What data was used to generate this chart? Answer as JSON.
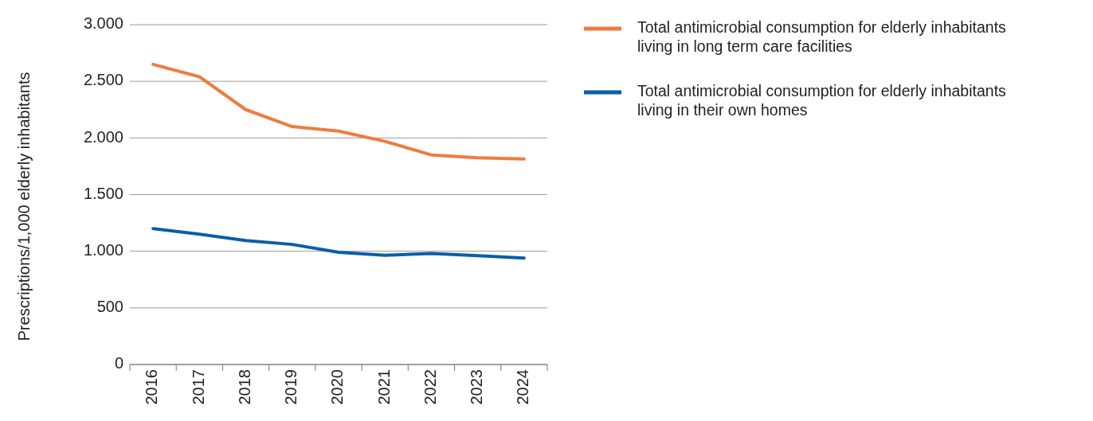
{
  "chart_data": {
    "type": "line",
    "ylabel": "Prescriptions/1,000 elderly inhabitants",
    "categories": [
      "2016",
      "2017",
      "2018",
      "2019",
      "2020",
      "2021",
      "2022",
      "2023",
      "2024"
    ],
    "series": [
      {
        "name": "Total antimicrobial consumption for elderly inhabitants living in long term care facilities",
        "color": "#f07b3f",
        "values": [
          2650,
          2540,
          2250,
          2100,
          2060,
          1970,
          1850,
          1825,
          1815
        ]
      },
      {
        "name": "Total antimicrobial consumption for elderly inhabitants living in their own homes",
        "color": "#0a5ea8",
        "values": [
          1200,
          1150,
          1095,
          1060,
          990,
          965,
          980,
          960,
          940
        ]
      }
    ],
    "ylim": [
      0,
      3000
    ],
    "yticks": [
      0,
      {
        "value": 500,
        "label": "500"
      },
      {
        "value": 1000,
        "label": "1.000"
      },
      {
        "value": 1500,
        "label": "1.500"
      },
      {
        "value": 2000,
        "label": "2.000"
      },
      {
        "value": 2500,
        "label": "2.500"
      },
      {
        "value": 3000,
        "label": "3.000"
      }
    ],
    "grid": "y",
    "legend": "right",
    "marker": "none",
    "line_style": "solid"
  }
}
